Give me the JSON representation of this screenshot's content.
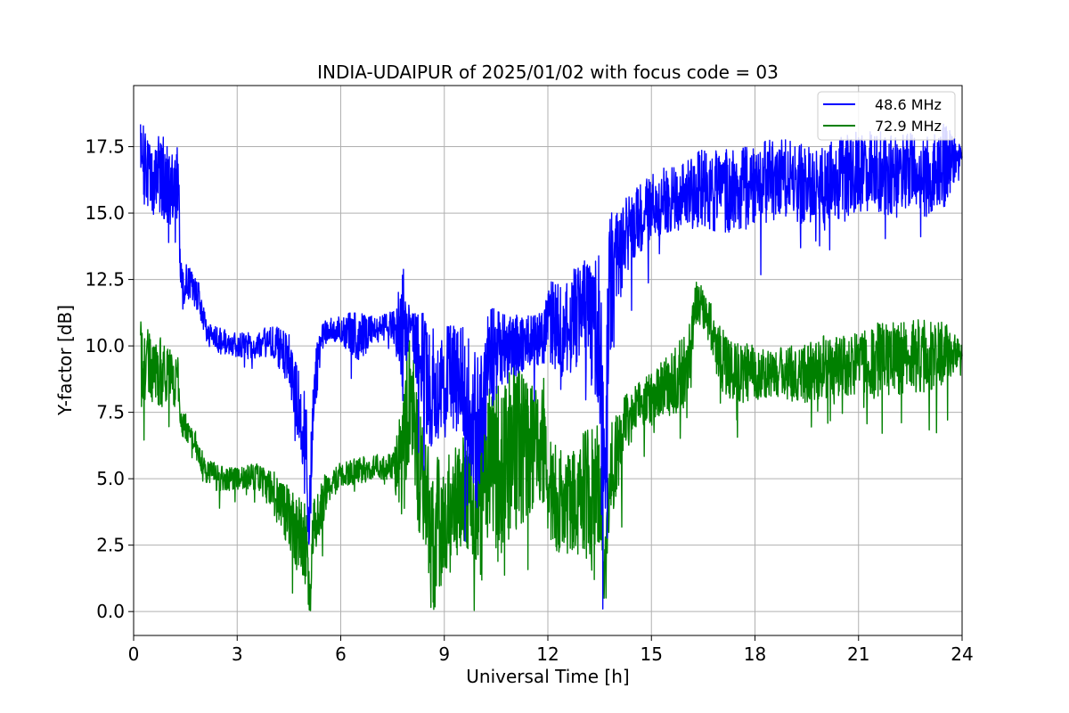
{
  "chart_data": {
    "type": "line",
    "title": "INDIA-UDAIPUR of 2025/01/02 with focus code = 03",
    "xlabel": "Universal Time [h]",
    "ylabel": "Y-factor [dB]",
    "xlim": [
      0,
      24
    ],
    "ylim": [
      -0.9,
      19.8
    ],
    "xticks": [
      0,
      3,
      6,
      9,
      12,
      15,
      18,
      21,
      24
    ],
    "xtick_labels": [
      "0",
      "3",
      "6",
      "9",
      "12",
      "15",
      "18",
      "21",
      "24"
    ],
    "yticks": [
      0,
      2.5,
      5,
      7.5,
      10,
      12.5,
      15,
      17.5
    ],
    "ytick_labels": [
      "0.0",
      "2.5",
      "5.0",
      "7.5",
      "10.0",
      "12.5",
      "15.0",
      "17.5"
    ],
    "grid": true,
    "legend_position": "top-right",
    "series": [
      {
        "name": "48.6 MHz",
        "color": "#0000ff",
        "x": [
          0.2,
          0.5,
          0.8,
          1.1,
          1.3,
          1.35,
          1.6,
          1.9,
          2.1,
          2.5,
          3.0,
          3.5,
          4.0,
          4.5,
          4.8,
          5.0,
          5.1,
          5.2,
          5.5,
          6.0,
          6.5,
          7.0,
          7.5,
          7.8,
          8.0,
          8.3,
          8.6,
          9.0,
          9.5,
          10.0,
          10.3,
          10.6,
          11.0,
          11.5,
          11.9,
          12.0,
          12.5,
          13.0,
          13.5,
          13.65,
          13.8,
          14.1,
          14.3,
          14.5,
          15.0,
          15.5,
          16.0,
          16.5,
          17.0,
          17.5,
          18.0,
          18.5,
          19.0,
          19.5,
          20.0,
          20.5,
          21.0,
          21.5,
          22.0,
          22.5,
          23.0,
          23.5,
          24.0
        ],
        "y": [
          17.2,
          16.0,
          16.5,
          15.8,
          16.2,
          12.5,
          12.3,
          11.8,
          10.5,
          10.2,
          10.0,
          10.0,
          10.2,
          9.5,
          7.5,
          6.5,
          3.0,
          8.5,
          10.5,
          10.6,
          10.4,
          10.6,
          10.8,
          10.7,
          10.8,
          9.5,
          8.5,
          8.8,
          8.8,
          6.5,
          9.5,
          9.8,
          10.0,
          10.2,
          10.3,
          11.0,
          10.5,
          11.5,
          10.5,
          6.5,
          12.0,
          13.5,
          14.2,
          14.6,
          15.2,
          15.6,
          15.6,
          16.0,
          15.8,
          15.8,
          16.0,
          16.2,
          16.3,
          16.0,
          16.2,
          16.4,
          16.6,
          16.6,
          16.4,
          16.5,
          16.4,
          16.8,
          17.2
        ],
        "spread": [
          1.5,
          1.4,
          1.6,
          1.5,
          1.4,
          0.7,
          0.7,
          0.6,
          0.5,
          0.5,
          0.5,
          0.5,
          0.6,
          1.0,
          1.5,
          1.6,
          2.5,
          1.5,
          0.5,
          0.5,
          1.0,
          0.5,
          0.5,
          2.5,
          0.5,
          2.0,
          2.5,
          2.0,
          2.0,
          3.0,
          2.0,
          1.5,
          1.2,
          1.0,
          1.0,
          1.5,
          1.8,
          2.0,
          3.0,
          3.5,
          3.0,
          2.0,
          1.5,
          1.3,
          1.3,
          1.3,
          1.3,
          1.5,
          1.6,
          1.6,
          1.6,
          1.6,
          1.5,
          1.5,
          1.6,
          1.6,
          1.6,
          1.5,
          1.6,
          1.6,
          1.6,
          1.6,
          0.4
        ]
      },
      {
        "name": "72.9 MHz",
        "color": "#008000",
        "x": [
          0.2,
          0.5,
          0.8,
          1.1,
          1.3,
          1.35,
          1.6,
          1.9,
          2.1,
          2.5,
          3.0,
          3.5,
          4.0,
          4.5,
          4.8,
          5.0,
          5.1,
          5.2,
          5.5,
          6.0,
          6.5,
          7.0,
          7.5,
          7.8,
          8.0,
          8.3,
          8.6,
          9.0,
          9.5,
          10.0,
          10.3,
          10.6,
          11.0,
          11.5,
          11.9,
          12.0,
          12.5,
          13.0,
          13.5,
          13.65,
          13.8,
          14.1,
          14.3,
          14.5,
          15.0,
          15.5,
          16.0,
          16.3,
          16.6,
          17.0,
          17.5,
          18.0,
          18.5,
          19.0,
          19.5,
          20.0,
          20.5,
          21.0,
          21.5,
          22.0,
          22.5,
          23.0,
          23.5,
          24.0
        ],
        "y": [
          9.5,
          9.2,
          9.0,
          8.8,
          8.6,
          7.2,
          6.8,
          6.0,
          5.3,
          5.0,
          5.0,
          5.1,
          4.6,
          3.5,
          2.8,
          2.5,
          0.5,
          3.0,
          4.3,
          5.2,
          5.3,
          5.4,
          5.5,
          5.6,
          8.5,
          5.0,
          3.0,
          3.2,
          4.5,
          4.0,
          6.0,
          5.5,
          6.5,
          6.0,
          6.5,
          4.5,
          4.0,
          4.2,
          5.0,
          1.5,
          5.0,
          6.5,
          7.2,
          7.5,
          8.0,
          8.5,
          9.0,
          11.8,
          11.2,
          9.5,
          9.0,
          9.0,
          8.9,
          9.0,
          9.0,
          9.2,
          9.3,
          9.4,
          9.5,
          9.5,
          9.6,
          9.6,
          9.7,
          9.8
        ],
        "spread": [
          1.5,
          1.3,
          1.3,
          1.0,
          1.0,
          0.5,
          0.5,
          0.5,
          0.5,
          0.5,
          0.4,
          0.5,
          0.8,
          1.2,
          1.5,
          1.5,
          1.5,
          1.2,
          0.8,
          0.5,
          0.5,
          0.5,
          0.5,
          2.5,
          2.5,
          2.5,
          3.0,
          2.5,
          2.0,
          3.5,
          3.0,
          3.5,
          3.5,
          2.5,
          2.5,
          2.0,
          2.0,
          2.5,
          2.5,
          2.0,
          2.0,
          1.5,
          1.0,
          1.0,
          1.0,
          1.2,
          1.5,
          0.8,
          0.8,
          1.2,
          1.2,
          1.0,
          1.0,
          1.0,
          1.2,
          1.2,
          1.2,
          1.2,
          1.4,
          1.4,
          1.4,
          1.4,
          1.2,
          0.3
        ]
      }
    ]
  }
}
